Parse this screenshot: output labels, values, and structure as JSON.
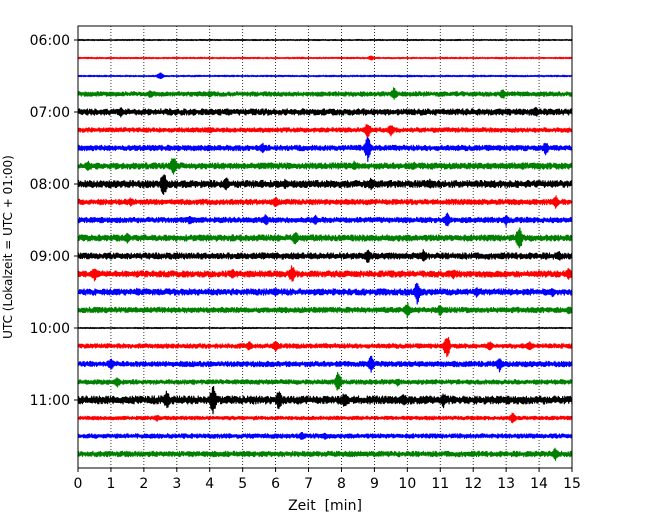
{
  "chart_data": {
    "type": "line",
    "xlabel": "Zeit  [min]",
    "ylabel": "UTC (Lokalzeit = UTC + 01:00)",
    "xlim": [
      0,
      15
    ],
    "x_ticks": [
      "0",
      "1",
      "2",
      "3",
      "4",
      "5",
      "6",
      "7",
      "8",
      "9",
      "10",
      "11",
      "12",
      "13",
      "14",
      "15"
    ],
    "y_ticks": [
      "06:00",
      "07:00",
      "08:00",
      "09:00",
      "10:00",
      "11:00"
    ],
    "grid": "vertical dotted at each minute",
    "colors": [
      "#000000",
      "#ff0000",
      "#0000ff",
      "#008000"
    ],
    "traces_start": "06:00",
    "traces_interval_min": 15,
    "traces_count": 24,
    "traces": [
      {
        "start": "06:00",
        "color": "#000000",
        "amplitude": 0.06,
        "events": []
      },
      {
        "start": "06:15",
        "color": "#ff0000",
        "amplitude": 0.08,
        "events": [
          [
            8.9,
            0.25
          ]
        ]
      },
      {
        "start": "06:30",
        "color": "#0000ff",
        "amplitude": 0.08,
        "events": [
          [
            2.5,
            0.4
          ]
        ]
      },
      {
        "start": "06:45",
        "color": "#008000",
        "amplitude": 0.25,
        "events": [
          [
            2.2,
            0.5
          ],
          [
            4.0,
            0.4
          ],
          [
            9.6,
            0.8
          ],
          [
            12.9,
            0.6
          ]
        ]
      },
      {
        "start": "07:00",
        "color": "#000000",
        "amplitude": 0.35,
        "events": [
          [
            1.3,
            0.6
          ],
          [
            13.9,
            0.6
          ]
        ]
      },
      {
        "start": "07:15",
        "color": "#ff0000",
        "amplitude": 0.25,
        "events": [
          [
            4.0,
            0.4
          ],
          [
            8.8,
            0.9
          ],
          [
            9.5,
            0.7
          ]
        ]
      },
      {
        "start": "07:30",
        "color": "#0000ff",
        "amplitude": 0.3,
        "events": [
          [
            5.6,
            0.6
          ],
          [
            8.8,
            1.5
          ],
          [
            14.2,
            0.8
          ]
        ]
      },
      {
        "start": "07:45",
        "color": "#008000",
        "amplitude": 0.35,
        "events": [
          [
            0.3,
            0.6
          ],
          [
            2.9,
            1.3
          ],
          [
            8.4,
            0.6
          ],
          [
            10.2,
            0.5
          ]
        ]
      },
      {
        "start": "08:00",
        "color": "#000000",
        "amplitude": 0.4,
        "events": [
          [
            2.6,
            1.6
          ],
          [
            4.5,
            0.9
          ],
          [
            6.3,
            0.6
          ],
          [
            8.9,
            0.8
          ],
          [
            10.7,
            0.6
          ]
        ]
      },
      {
        "start": "08:15",
        "color": "#ff0000",
        "amplitude": 0.3,
        "events": [
          [
            1.6,
            0.5
          ],
          [
            6.0,
            0.6
          ],
          [
            14.5,
            0.8
          ]
        ]
      },
      {
        "start": "08:30",
        "color": "#0000ff",
        "amplitude": 0.3,
        "events": [
          [
            3.4,
            0.6
          ],
          [
            5.7,
            0.7
          ],
          [
            7.2,
            0.6
          ],
          [
            11.2,
            0.9
          ],
          [
            13.0,
            0.7
          ]
        ]
      },
      {
        "start": "08:45",
        "color": "#008000",
        "amplitude": 0.35,
        "events": [
          [
            1.5,
            0.6
          ],
          [
            6.6,
            0.8
          ],
          [
            13.4,
            1.5
          ]
        ]
      },
      {
        "start": "09:00",
        "color": "#000000",
        "amplitude": 0.35,
        "events": [
          [
            8.8,
            0.9
          ],
          [
            10.5,
            0.8
          ],
          [
            14.6,
            0.6
          ]
        ]
      },
      {
        "start": "09:15",
        "color": "#ff0000",
        "amplitude": 0.35,
        "events": [
          [
            0.5,
            0.8
          ],
          [
            4.7,
            0.6
          ],
          [
            6.5,
            1.1
          ],
          [
            11.4,
            0.6
          ],
          [
            14.9,
            0.7
          ]
        ]
      },
      {
        "start": "09:30",
        "color": "#0000ff",
        "amplitude": 0.35,
        "events": [
          [
            1.8,
            0.5
          ],
          [
            6.0,
            0.6
          ],
          [
            10.3,
            1.4
          ],
          [
            12.1,
            0.6
          ],
          [
            14.4,
            0.6
          ]
        ]
      },
      {
        "start": "09:45",
        "color": "#008000",
        "amplitude": 0.3,
        "events": [
          [
            10.0,
            0.9
          ],
          [
            11.0,
            0.7
          ],
          [
            14.9,
            0.5
          ]
        ]
      },
      {
        "start": "10:00",
        "color": "#000000",
        "amplitude": 0.06,
        "events": []
      },
      {
        "start": "10:15",
        "color": "#ff0000",
        "amplitude": 0.25,
        "events": [
          [
            5.2,
            0.6
          ],
          [
            6.0,
            0.8
          ],
          [
            11.2,
            1.4
          ],
          [
            12.5,
            0.6
          ],
          [
            13.7,
            0.6
          ]
        ]
      },
      {
        "start": "10:30",
        "color": "#0000ff",
        "amplitude": 0.3,
        "events": [
          [
            1.0,
            0.8
          ],
          [
            8.9,
            1.0
          ],
          [
            12.8,
            0.9
          ]
        ]
      },
      {
        "start": "10:45",
        "color": "#008000",
        "amplitude": 0.25,
        "events": [
          [
            1.2,
            0.6
          ],
          [
            7.9,
            1.2
          ],
          [
            9.7,
            0.5
          ]
        ]
      },
      {
        "start": "11:00",
        "color": "#000000",
        "amplitude": 0.45,
        "events": [
          [
            2.7,
            1.1
          ],
          [
            4.1,
            1.7
          ],
          [
            6.1,
            1.2
          ],
          [
            8.1,
            1.0
          ],
          [
            9.9,
            0.8
          ],
          [
            11.1,
            0.9
          ]
        ]
      },
      {
        "start": "11:15",
        "color": "#ff0000",
        "amplitude": 0.2,
        "events": [
          [
            2.4,
            0.4
          ],
          [
            13.2,
            0.7
          ]
        ]
      },
      {
        "start": "11:30",
        "color": "#0000ff",
        "amplitude": 0.25,
        "events": [
          [
            6.8,
            0.5
          ],
          [
            7.5,
            0.4
          ]
        ]
      },
      {
        "start": "11:45",
        "color": "#008000",
        "amplitude": 0.3,
        "events": [
          [
            14.5,
            0.8
          ]
        ]
      }
    ]
  }
}
